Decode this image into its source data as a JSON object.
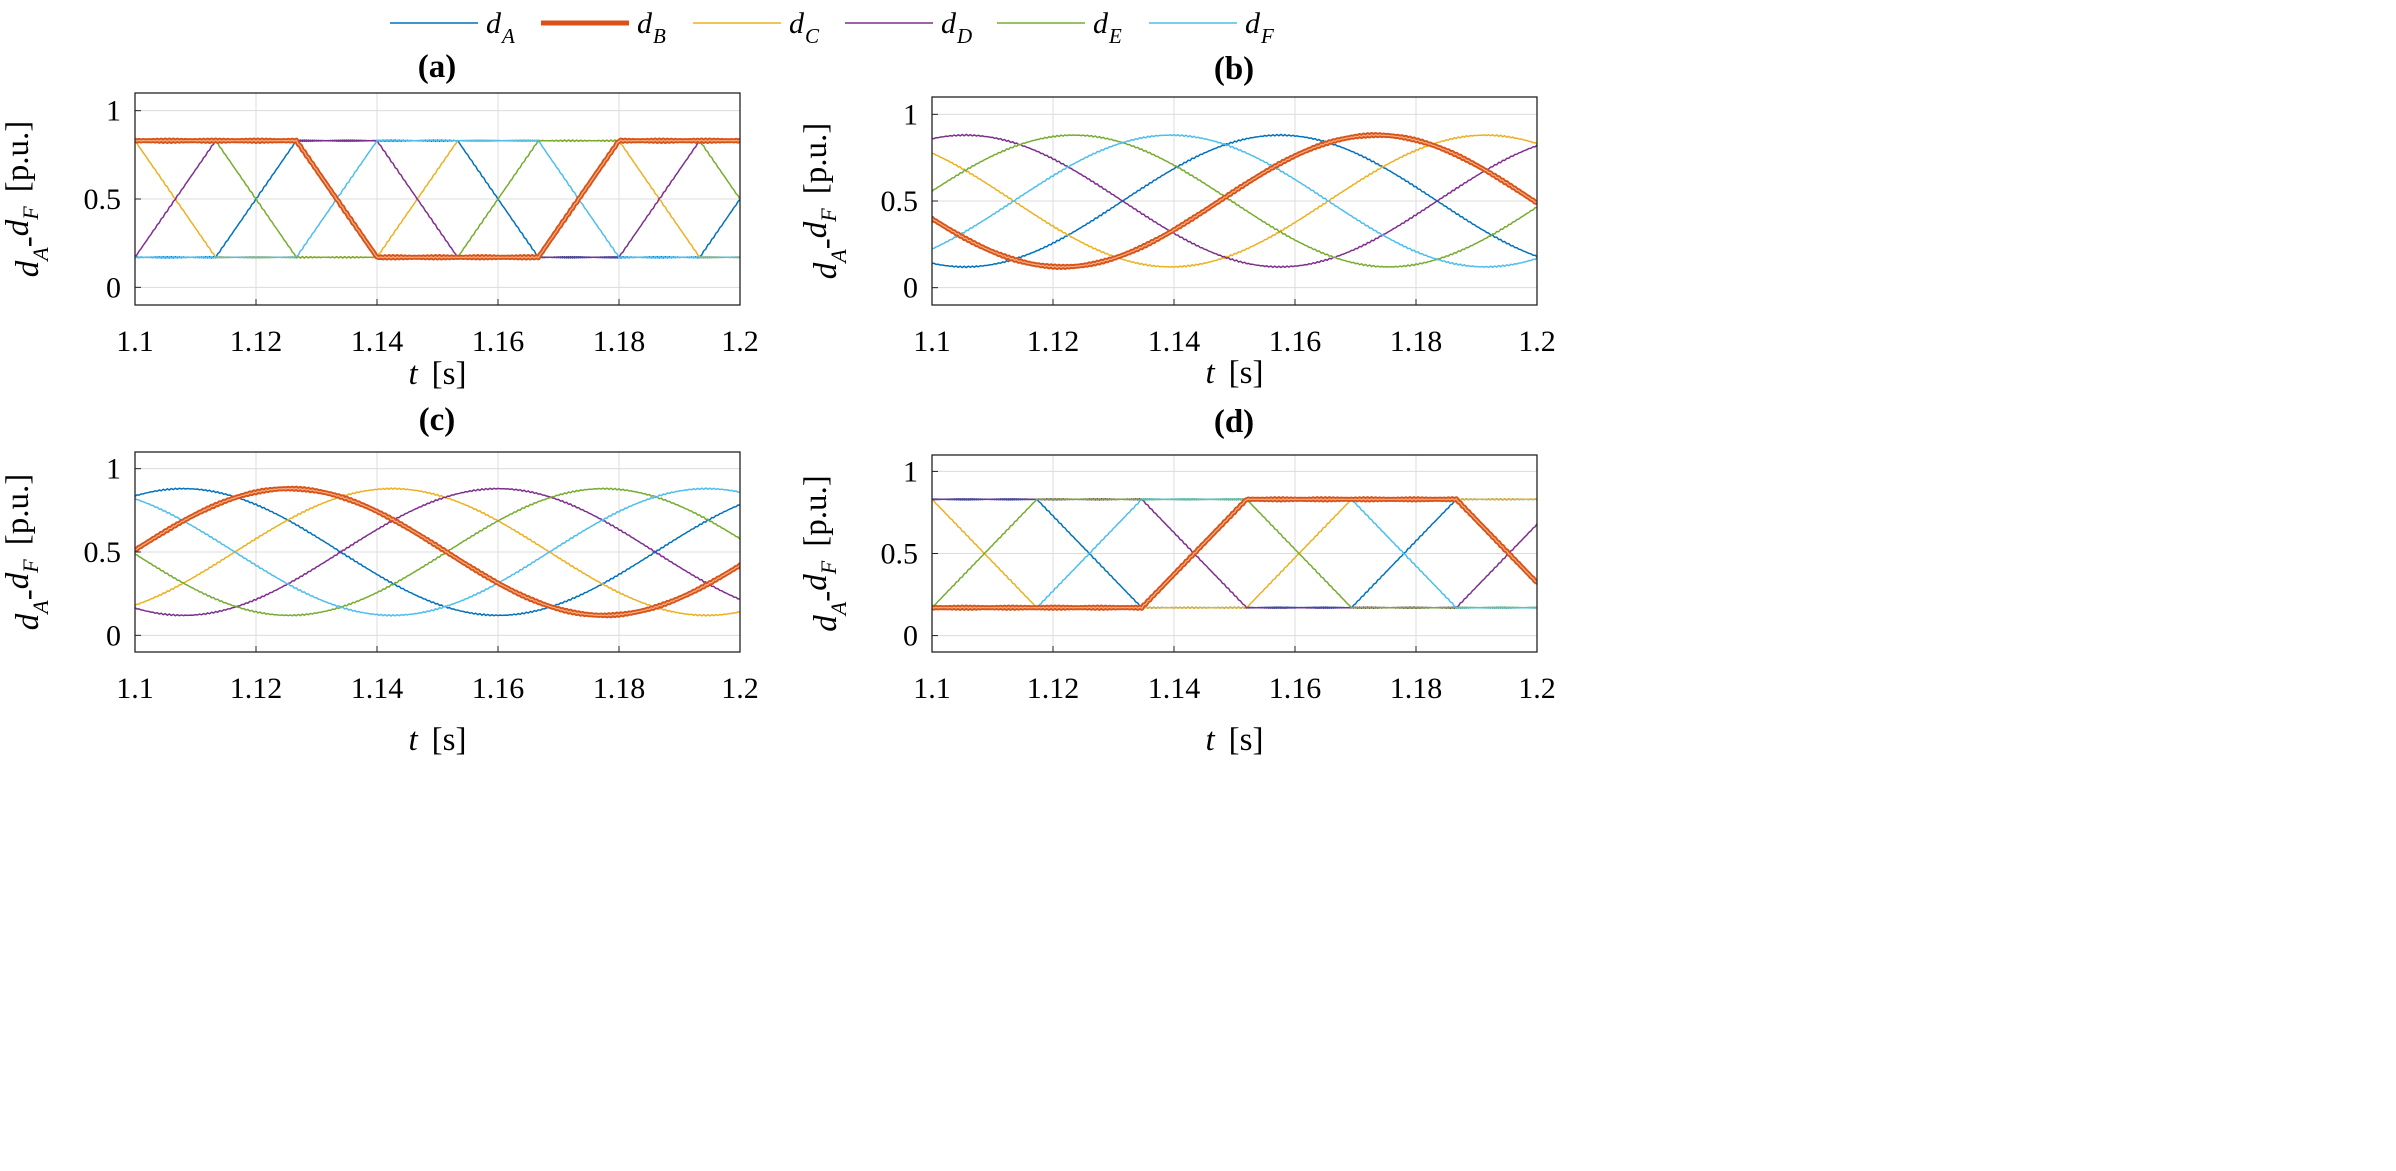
{
  "chart_data": [
    {
      "type": "line",
      "title": "(a)",
      "xlabel": "t  [s]",
      "ylabel": "d_A-d_F  [p.u.]",
      "xlim": [
        1.1,
        1.2
      ],
      "ylim": [
        -0.1,
        1.1
      ],
      "x_ticks": [
        "1.1",
        "1.12",
        "1.14",
        "1.16",
        "1.18",
        "1.2"
      ],
      "y_ticks": [
        "0",
        "0.5",
        "1"
      ],
      "grid": true,
      "waveform": "trapezoid",
      "period_s": 0.08,
      "min": 0.17,
      "max": 0.83,
      "series": [
        {
          "name": "d_A",
          "color": "#0072BD",
          "phase_deg": 240
        },
        {
          "name": "d_B",
          "color": "#D95319",
          "phase_deg": 0
        },
        {
          "name": "d_C",
          "color": "#EDB120",
          "phase_deg": 120
        },
        {
          "name": "d_D",
          "color": "#7E2F8E",
          "phase_deg": 300
        },
        {
          "name": "d_E",
          "color": "#77AC30",
          "phase_deg": 60
        },
        {
          "name": "d_F",
          "color": "#4DBEEE",
          "phase_deg": 180
        }
      ]
    },
    {
      "type": "line",
      "title": "(b)",
      "xlabel": "t  [s]",
      "ylabel": "d_A-d_F  [p.u.]",
      "xlim": [
        1.1,
        1.2
      ],
      "ylim": [
        -0.1,
        1.1
      ],
      "x_ticks": [
        "1.1",
        "1.12",
        "1.14",
        "1.16",
        "1.18",
        "1.2"
      ],
      "y_ticks": [
        "0",
        "0.5",
        "1"
      ],
      "grid": true,
      "waveform": "sine",
      "period_s": 0.104,
      "min": 0.12,
      "max": 0.88,
      "series": [
        {
          "name": "d_A",
          "color": "#0072BD",
          "peak_t": 1.1575
        },
        {
          "name": "d_B",
          "color": "#D95319",
          "peak_t": 1.1735
        },
        {
          "name": "d_C",
          "color": "#EDB120",
          "peak_t": 1.1915
        },
        {
          "name": "d_D",
          "color": "#7E2F8E",
          "peak_t": 1.1055
        },
        {
          "name": "d_E",
          "color": "#77AC30",
          "peak_t": 1.1235
        },
        {
          "name": "d_F",
          "color": "#4DBEEE",
          "peak_t": 1.1395
        }
      ]
    },
    {
      "type": "line",
      "title": "(c)",
      "xlabel": "t  [s]",
      "ylabel": "d_A-d_F  [p.u.]",
      "xlim": [
        1.1,
        1.2
      ],
      "ylim": [
        -0.1,
        1.1
      ],
      "x_ticks": [
        "1.1",
        "1.12",
        "1.14",
        "1.16",
        "1.18",
        "1.2"
      ],
      "y_ticks": [
        "0",
        "0.5",
        "1"
      ],
      "grid": true,
      "waveform": "sine",
      "period_s": 0.104,
      "min": 0.12,
      "max": 0.88,
      "series": [
        {
          "name": "d_A",
          "color": "#0072BD",
          "peak_t": 1.108
        },
        {
          "name": "d_B",
          "color": "#D95319",
          "peak_t": 1.1255
        },
        {
          "name": "d_C",
          "color": "#EDB120",
          "peak_t": 1.1425
        },
        {
          "name": "d_D",
          "color": "#7E2F8E",
          "peak_t": 1.16
        },
        {
          "name": "d_E",
          "color": "#77AC30",
          "peak_t": 1.1775
        },
        {
          "name": "d_F",
          "color": "#4DBEEE",
          "peak_t": 1.1945
        }
      ]
    },
    {
      "type": "line",
      "title": "(d)",
      "xlabel": "t  [s]",
      "ylabel": "d_A-d_F  [p.u.]",
      "xlim": [
        1.1,
        1.2
      ],
      "ylim": [
        -0.1,
        1.1
      ],
      "x_ticks": [
        "1.1",
        "1.12",
        "1.14",
        "1.16",
        "1.18",
        "1.2"
      ],
      "y_ticks": [
        "0",
        "0.5",
        "1"
      ],
      "grid": true,
      "waveform": "trapezoid",
      "period_s": 0.104,
      "min": 0.17,
      "max": 0.83,
      "series": [
        {
          "name": "d_A",
          "color": "#0072BD",
          "phase_deg": 60
        },
        {
          "name": "d_B",
          "color": "#D95319",
          "phase_deg": 180
        },
        {
          "name": "d_C",
          "color": "#EDB120",
          "phase_deg": 120
        },
        {
          "name": "d_D",
          "color": "#7E2F8E",
          "phase_deg": 0
        },
        {
          "name": "d_E",
          "color": "#77AC30",
          "phase_deg": 300
        },
        {
          "name": "d_F",
          "color": "#4DBEEE",
          "phase_deg": 240
        }
      ]
    }
  ],
  "legend": [
    {
      "symbol": "d",
      "sub": "A",
      "color": "#0072BD"
    },
    {
      "symbol": "d",
      "sub": "B",
      "color": "#D95319"
    },
    {
      "symbol": "d",
      "sub": "C",
      "color": "#EDB120"
    },
    {
      "symbol": "d",
      "sub": "D",
      "color": "#7E2F8E"
    },
    {
      "symbol": "d",
      "sub": "E",
      "color": "#77AC30"
    },
    {
      "symbol": "d",
      "sub": "F",
      "color": "#4DBEEE"
    }
  ]
}
